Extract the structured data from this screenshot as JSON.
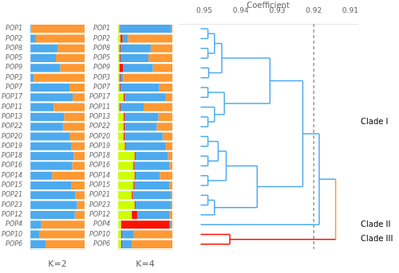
{
  "chart_data": [
    {
      "type": "bar",
      "orientation": "horizontal",
      "stacked": true,
      "x_label": "K=2",
      "categories": [
        "POP1",
        "POP2",
        "POP8",
        "POP5",
        "POP9",
        "POP3",
        "POP7",
        "POP17",
        "POP11",
        "POP13",
        "POP22",
        "POP20",
        "POP19",
        "POP18",
        "POP16",
        "POP14",
        "POP15",
        "POP21",
        "POP23",
        "POP12",
        "POP4",
        "POP10",
        "POP6"
      ],
      "series": [
        {
          "color": "#4DAAEE",
          "values": [
            0.02,
            0.1,
            0.5,
            0.47,
            0.55,
            0.06,
            0.72,
            0.78,
            0.43,
            0.62,
            0.6,
            0.72,
            0.76,
            0.8,
            0.77,
            0.4,
            0.76,
            0.83,
            0.86,
            0.82,
            0.2,
            0.17,
            0.28
          ]
        },
        {
          "color": "#FF9933",
          "values": [
            0.98,
            0.9,
            0.5,
            0.53,
            0.45,
            0.94,
            0.28,
            0.22,
            0.57,
            0.38,
            0.4,
            0.28,
            0.24,
            0.2,
            0.23,
            0.6,
            0.24,
            0.17,
            0.14,
            0.18,
            0.8,
            0.83,
            0.72
          ]
        }
      ],
      "xlim": [
        0,
        1
      ],
      "tick_labels": "y",
      "grid": false
    },
    {
      "type": "bar",
      "orientation": "horizontal",
      "stacked": true,
      "x_label": "K=4",
      "categories": [
        "POP1",
        "POP2",
        "POP8",
        "POP5",
        "POP9",
        "POP3",
        "POP7",
        "POP17",
        "POP11",
        "POP13",
        "POP22",
        "POP20",
        "POP19",
        "POP18",
        "POP16",
        "POP14",
        "POP15",
        "POP21",
        "POP23",
        "POP12",
        "POP4",
        "POP10",
        "POP6"
      ],
      "series": [
        {
          "color": "#CCFF00",
          "values": [
            0.02,
            0.04,
            0.02,
            0.02,
            0.02,
            0.02,
            0.02,
            0.1,
            0.02,
            0.1,
            0.1,
            0.1,
            0.12,
            0.3,
            0.28,
            0.3,
            0.28,
            0.25,
            0.3,
            0.25,
            0.05,
            0.05,
            0.05
          ]
        },
        {
          "color": "#FF1100",
          "values": [
            0.01,
            0.04,
            0.02,
            0.02,
            0.07,
            0.02,
            0.02,
            0.02,
            0.02,
            0.02,
            0.02,
            0.02,
            0.02,
            0.02,
            0.02,
            0.02,
            0.02,
            0.02,
            0.02,
            0.1,
            0.9,
            0.02,
            0.02
          ]
        },
        {
          "color": "#4DAAEE",
          "values": [
            0.95,
            0.1,
            0.56,
            0.52,
            0.55,
            0.05,
            0.72,
            0.76,
            0.43,
            0.62,
            0.59,
            0.7,
            0.74,
            0.6,
            0.65,
            0.45,
            0.65,
            0.7,
            0.65,
            0.6,
            0.02,
            0.22,
            0.18
          ]
        },
        {
          "color": "#FF9933",
          "values": [
            0.02,
            0.82,
            0.4,
            0.44,
            0.36,
            0.91,
            0.24,
            0.12,
            0.53,
            0.26,
            0.29,
            0.18,
            0.12,
            0.08,
            0.05,
            0.23,
            0.05,
            0.03,
            0.03,
            0.05,
            0.03,
            0.71,
            0.75
          ]
        }
      ],
      "xlim": [
        0,
        1
      ],
      "tick_labels": "y",
      "grid": false
    },
    {
      "type": "dendrogram",
      "x_label": "Coefficient",
      "categories": [
        "POP1",
        "POP2",
        "POP8",
        "POP5",
        "POP9",
        "POP3",
        "POP7",
        "POP17",
        "POP11",
        "POP13",
        "POP22",
        "POP20",
        "POP19",
        "POP18",
        "POP16",
        "POP14",
        "POP15",
        "POP21",
        "POP23",
        "POP12",
        "POP4",
        "POP10",
        "POP6"
      ],
      "xlim": [
        0.957,
        0.908
      ],
      "xticks": [
        0.95,
        0.94,
        0.93,
        0.92,
        0.91
      ],
      "leaf_value": 0.951,
      "tree": {
        "value": 0.914,
        "color": "#FF9933",
        "children": [
          {
            "value": 0.9185,
            "color": "#4DAAEE",
            "children": [
              {
                "value": 0.923,
                "children": [
                  {
                    "value": 0.932,
                    "children": [
                      {
                        "value": 0.9452,
                        "children": [
                          {
                            "value": 0.9472,
                            "children": [
                              {
                                "value": 0.949,
                                "children": [
                                  "POP1",
                                  "POP2"
                                ]
                              },
                              {
                                "value": 0.949,
                                "children": [
                                  "POP8",
                                  "POP5"
                                ]
                              }
                            ]
                          },
                          {
                            "value": 0.9488,
                            "children": [
                              "POP9",
                              "POP3"
                            ]
                          }
                        ]
                      },
                      {
                        "value": 0.9445,
                        "children": [
                          {
                            "value": 0.949,
                            "children": [
                              "POP7",
                              "POP17"
                            ]
                          },
                          {
                            "value": 0.9472,
                            "children": [
                              "POP11",
                              {
                                "value": 0.949,
                                "children": [
                                  "POP13",
                                  "POP22"
                                ]
                              }
                            ]
                          }
                        ]
                      }
                    ]
                  },
                  {
                    "value": 0.9355,
                    "children": [
                      {
                        "value": 0.944,
                        "children": [
                          {
                            "value": 0.9462,
                            "children": [
                              {
                                "value": 0.949,
                                "children": [
                                  "POP20",
                                  "POP19"
                                ]
                              },
                              {
                                "value": 0.949,
                                "children": [
                                  "POP18",
                                  "POP16"
                                ]
                              }
                            ]
                          },
                          {
                            "value": 0.949,
                            "children": [
                              "POP14",
                              "POP15"
                            ]
                          }
                        ]
                      },
                      {
                        "value": 0.9472,
                        "children": [
                          {
                            "value": 0.949,
                            "children": [
                              "POP21",
                              "POP23"
                            ]
                          },
                          "POP12"
                        ]
                      }
                    ]
                  }
                ]
              },
              "POP4"
            ]
          },
          {
            "value": 0.943,
            "color": "#FF1100",
            "children": [
              "POP10",
              "POP6"
            ]
          }
        ]
      },
      "threshold": 0.92,
      "clades": [
        {
          "name": "Clade I",
          "members": [
            "POP1",
            "POP2",
            "POP8",
            "POP5",
            "POP9",
            "POP3",
            "POP7",
            "POP17",
            "POP11",
            "POP13",
            "POP22",
            "POP20",
            "POP19",
            "POP18",
            "POP16",
            "POP14",
            "POP15",
            "POP21",
            "POP23",
            "POP12"
          ]
        },
        {
          "name": "Clade II",
          "members": [
            "POP4"
          ]
        },
        {
          "name": "Clade III",
          "members": [
            "POP10",
            "POP6"
          ]
        }
      ],
      "tick_labels": "x",
      "grid": false
    }
  ]
}
